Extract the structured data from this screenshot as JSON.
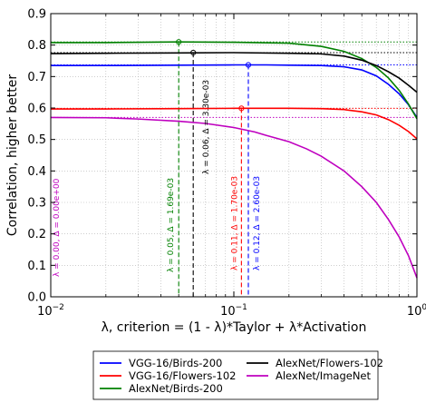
{
  "chart_data": {
    "type": "line",
    "xlabel": "λ, criterion = (1 - λ)*Taylor + λ*Activation",
    "ylabel": "Correlation, higher better",
    "xscale": "log",
    "xlim": [
      0.01,
      1.0
    ],
    "ylim": [
      0.0,
      0.9
    ],
    "grid": true,
    "legend_position": "bottom",
    "x_ticks": [
      {
        "value": 0.01,
        "base": "10",
        "exp": "−2"
      },
      {
        "value": 0.1,
        "base": "10",
        "exp": "−1"
      },
      {
        "value": 1.0,
        "base": "10",
        "exp": "0"
      }
    ],
    "y_ticks": [
      {
        "value": 0.0,
        "label": "0.0"
      },
      {
        "value": 0.1,
        "label": "0.1"
      },
      {
        "value": 0.2,
        "label": "0.2"
      },
      {
        "value": 0.3,
        "label": "0.3"
      },
      {
        "value": 0.4,
        "label": "0.4"
      },
      {
        "value": 0.5,
        "label": "0.5"
      },
      {
        "value": 0.6,
        "label": "0.6"
      },
      {
        "value": 0.7,
        "label": "0.7"
      },
      {
        "value": 0.8,
        "label": "0.8"
      },
      {
        "value": 0.9,
        "label": "0.9"
      }
    ],
    "series": [
      {
        "name": "VGG-16/Birds-200",
        "color": "#0000ff",
        "x": [
          0.01,
          0.02,
          0.05,
          0.1,
          0.15,
          0.2,
          0.3,
          0.4,
          0.5,
          0.6,
          0.7,
          0.8,
          0.9,
          1.0
        ],
        "y": [
          0.735,
          0.735,
          0.736,
          0.737,
          0.737,
          0.736,
          0.735,
          0.731,
          0.721,
          0.702,
          0.675,
          0.645,
          0.61,
          0.57
        ],
        "best_x": 0.12,
        "best_y": 0.737,
        "delta": "2.60e-03",
        "annotation": "λ = 0.12, Δ = 2.60e-03"
      },
      {
        "name": "VGG-16/Flowers-102",
        "color": "#ff0000",
        "x": [
          0.01,
          0.02,
          0.05,
          0.1,
          0.2,
          0.3,
          0.4,
          0.5,
          0.6,
          0.7,
          0.8,
          0.9,
          1.0
        ],
        "y": [
          0.597,
          0.597,
          0.598,
          0.599,
          0.599,
          0.598,
          0.595,
          0.588,
          0.578,
          0.563,
          0.545,
          0.525,
          0.502
        ],
        "best_x": 0.11,
        "best_y": 0.599,
        "delta": "1.70e-03",
        "annotation": "λ = 0.11, Δ = 1.70e-03"
      },
      {
        "name": "AlexNet/Birds-200",
        "color": "#008000",
        "x": [
          0.01,
          0.02,
          0.05,
          0.1,
          0.2,
          0.3,
          0.4,
          0.5,
          0.6,
          0.7,
          0.8,
          0.9,
          1.0
        ],
        "y": [
          0.808,
          0.808,
          0.81,
          0.809,
          0.806,
          0.796,
          0.78,
          0.757,
          0.729,
          0.695,
          0.656,
          0.612,
          0.566
        ],
        "best_x": 0.05,
        "best_y": 0.81,
        "delta": "1.69e-03",
        "annotation": "λ = 0.05, Δ = 1.69e-03"
      },
      {
        "name": "AlexNet/Flowers-102",
        "color": "#000000",
        "x": [
          0.01,
          0.02,
          0.05,
          0.1,
          0.2,
          0.3,
          0.4,
          0.5,
          0.6,
          0.7,
          0.8,
          0.9,
          1.0
        ],
        "y": [
          0.773,
          0.774,
          0.775,
          0.776,
          0.774,
          0.772,
          0.765,
          0.752,
          0.735,
          0.715,
          0.695,
          0.672,
          0.65
        ],
        "best_x": 0.06,
        "best_y": 0.776,
        "delta": "3.30e-03",
        "annotation": "λ = 0.06, Δ = 3.30e-03"
      },
      {
        "name": "AlexNet/ImageNet",
        "color": "#bf00bf",
        "x": [
          0.01,
          0.02,
          0.03,
          0.05,
          0.07,
          0.1,
          0.13,
          0.15,
          0.2,
          0.25,
          0.3,
          0.4,
          0.5,
          0.6,
          0.7,
          0.8,
          0.9,
          1.0
        ],
        "y": [
          0.57,
          0.569,
          0.565,
          0.558,
          0.551,
          0.538,
          0.524,
          0.513,
          0.493,
          0.47,
          0.447,
          0.4,
          0.35,
          0.3,
          0.245,
          0.19,
          0.13,
          0.06
        ],
        "best_x": 0.01,
        "best_y": 0.57,
        "delta": "0.00e+00",
        "annotation": "λ = 0.00, Δ = 0.00e+00"
      }
    ]
  }
}
